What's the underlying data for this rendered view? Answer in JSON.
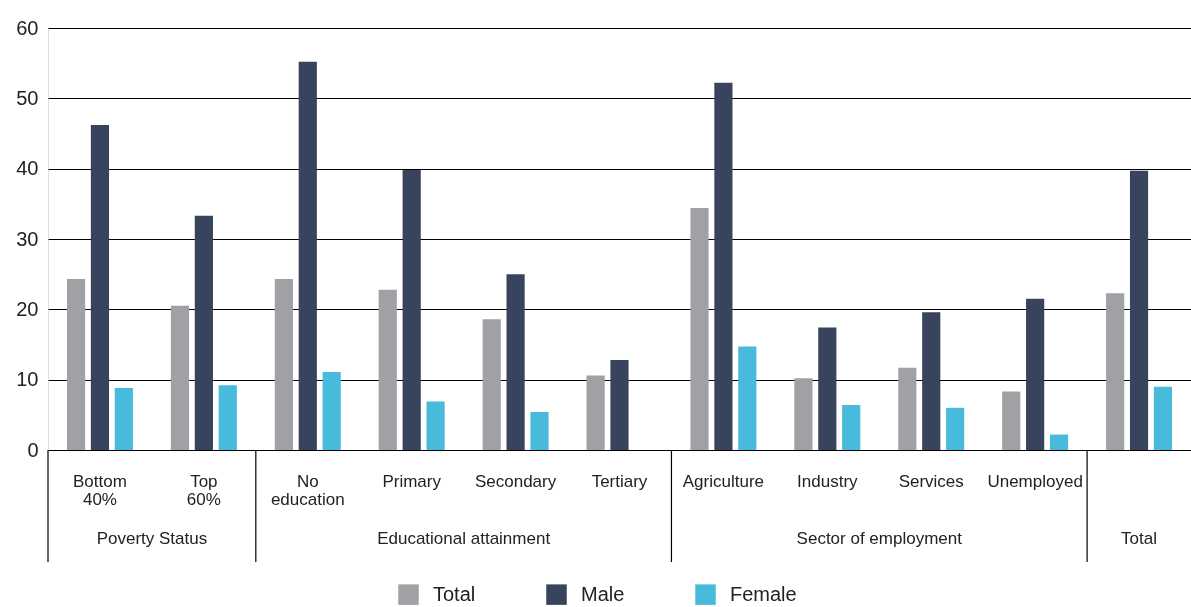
{
  "chart_data": {
    "type": "bar",
    "categories": [
      "Bottom\n40%",
      "Top\n60%",
      "No\neducation",
      "Primary",
      "Secondary",
      "Tertiary",
      "Agriculture",
      "Industry",
      "Services",
      "Unemployed",
      null
    ],
    "series": [
      {
        "name": "Total",
        "color": "#a0a1a5",
        "values": [
          24.3,
          20.5,
          24.3,
          22.8,
          18.6,
          10.6,
          34.4,
          10.2,
          11.7,
          8.3,
          22.3
        ]
      },
      {
        "name": "Male",
        "color": "#38445d",
        "values": [
          46.2,
          33.3,
          55.2,
          39.8,
          25.0,
          12.8,
          52.2,
          17.4,
          19.6,
          21.5,
          39.7
        ]
      },
      {
        "name": "Female",
        "color": "#48bbdc",
        "values": [
          8.8,
          9.2,
          11.1,
          6.9,
          5.4,
          null,
          14.7,
          6.4,
          6.0,
          2.2,
          9.0
        ]
      }
    ],
    "annotations": [
      "Poverty Status",
      "Educational attainment",
      "Sector of employment",
      "Total"
    ],
    "ylim": [
      0,
      60
    ],
    "yticks": [
      0,
      10,
      20,
      30,
      40,
      50,
      60
    ],
    "grid": "y",
    "legend": "bottom"
  }
}
